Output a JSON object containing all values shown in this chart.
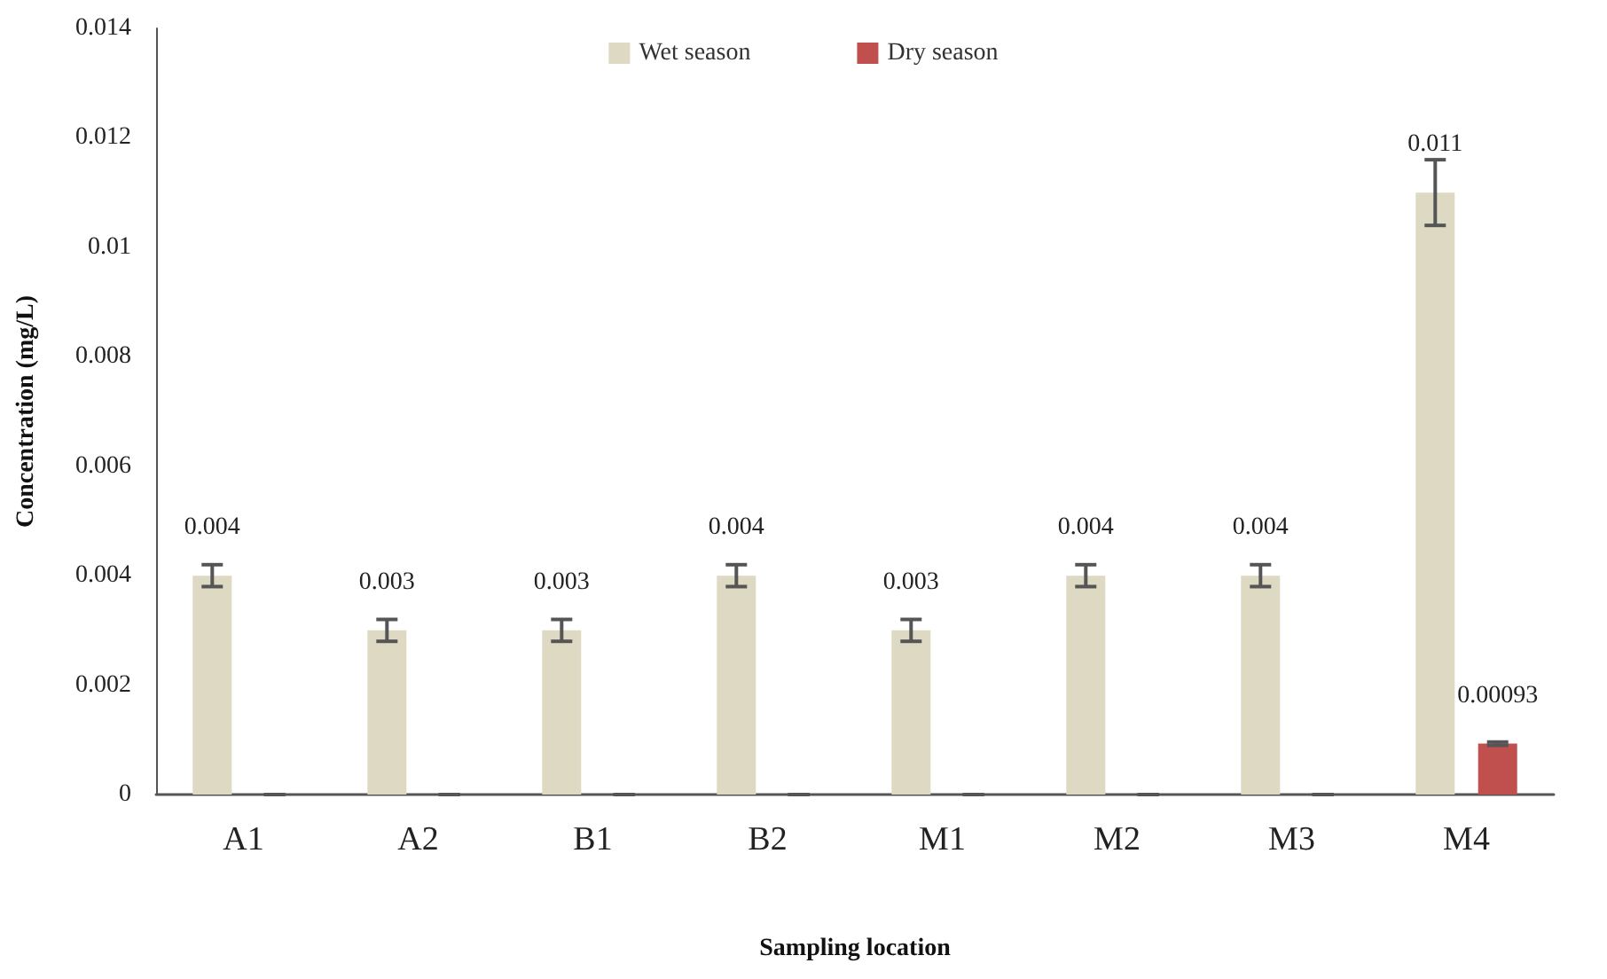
{
  "chart_data": {
    "type": "bar",
    "xlabel": "Sampling location",
    "ylabel": "Concentration (mg/L)",
    "categories": [
      "A1",
      "A2",
      "B1",
      "B2",
      "M1",
      "M2",
      "M3",
      "M4"
    ],
    "series": [
      {
        "name": "Wet season",
        "color": "#ddd9c3",
        "values": [
          0.004,
          0.003,
          0.003,
          0.004,
          0.003,
          0.004,
          0.004,
          0.011
        ],
        "errors": [
          0.0002,
          0.0002,
          0.0002,
          0.0002,
          0.0002,
          0.0002,
          0.0002,
          0.0006
        ],
        "value_labels": [
          "0.004",
          "0.003",
          "0.003",
          "0.004",
          "0.003",
          "0.004",
          "0.004",
          "0.011"
        ]
      },
      {
        "name": "Dry season",
        "color": "#c0504d",
        "values": [
          0,
          0,
          0,
          0,
          0,
          0,
          0,
          0.00093
        ],
        "errors": [
          0,
          0,
          0,
          0,
          0,
          0,
          0,
          3e-05
        ],
        "value_labels": [
          null,
          null,
          null,
          null,
          null,
          null,
          null,
          "0.00093"
        ]
      }
    ],
    "ylim": [
      0,
      0.014
    ],
    "yticks": [
      0,
      0.002,
      0.004,
      0.006,
      0.008,
      0.01,
      0.012,
      0.014
    ],
    "grid": false,
    "legend": "top"
  }
}
